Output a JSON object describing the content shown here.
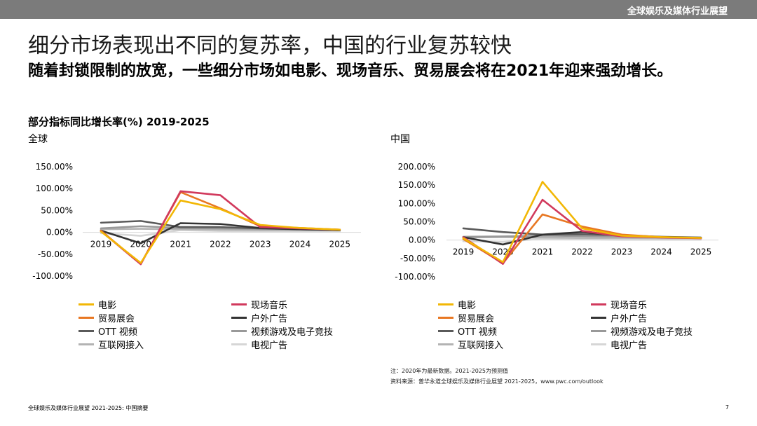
{
  "header": {
    "title": "全球娱乐及媒体行业展望"
  },
  "headline": "细分市场表现出不同的复苏率，中国的行业复苏较快",
  "subheadline": "随着封锁限制的放宽，一些细分市场如电影、现场音乐、贸易展会将在2021年迎来强劲增长。",
  "chart_heading": "部分指标同比增长率(%) 2019-2025",
  "notes": {
    "note": "注：2020年为最新数据。2021-2025为预测值",
    "source": "资料来源：普华永道全球娱乐及媒体行业展望 2021-2025，www.pwc.com/outlook"
  },
  "footer": {
    "left": "全球娱乐及媒体行业展望 2021-2025: 中国摘要",
    "page": "7"
  },
  "chart_data": [
    {
      "type": "line",
      "title": "全球",
      "categories": [
        "2019",
        "2020",
        "2021",
        "2022",
        "2023",
        "2024",
        "2025"
      ],
      "ylim": [
        -100,
        150
      ],
      "yticks": [
        150,
        100,
        50,
        0,
        -50,
        -100
      ],
      "ytick_labels": [
        "150.00%",
        "100.00%",
        "50.00%",
        "0.00%",
        "-50.00%",
        "-100.00%"
      ],
      "grid": false,
      "legend_position": "bottom",
      "series": [
        {
          "name": "电影",
          "color": "#f2b705",
          "values": [
            2,
            -70,
            73,
            53,
            17,
            10,
            6
          ]
        },
        {
          "name": "现场音乐",
          "color": "#d1395c",
          "values": [
            3,
            -73,
            94,
            85,
            12,
            9,
            6
          ]
        },
        {
          "name": "贸易展会",
          "color": "#e87722",
          "values": [
            4,
            -72,
            92,
            55,
            14,
            10,
            6
          ]
        },
        {
          "name": "户外广告",
          "color": "#333333",
          "values": [
            4,
            -25,
            21,
            19,
            10,
            7,
            5
          ]
        },
        {
          "name": "OTT 视频",
          "color": "#5a5a5a",
          "values": [
            22,
            26,
            12,
            12,
            9,
            7,
            5
          ]
        },
        {
          "name": "视频游戏及电子竞技",
          "color": "#999999",
          "values": [
            9,
            14,
            10,
            9,
            8,
            7,
            6
          ]
        },
        {
          "name": "互联网接入",
          "color": "#b3b3b3",
          "values": [
            7,
            8,
            7,
            6,
            5,
            5,
            5
          ]
        },
        {
          "name": "电视广告",
          "color": "#d6d6d6",
          "values": [
            -2,
            -8,
            5,
            3,
            2,
            2,
            2
          ]
        }
      ]
    },
    {
      "type": "line",
      "title": "中国",
      "categories": [
        "2019",
        "2020",
        "2021",
        "2022",
        "2023",
        "2024",
        "2025"
      ],
      "ylim": [
        -100,
        200
      ],
      "yticks": [
        200,
        150,
        100,
        50,
        0,
        -50,
        -100
      ],
      "ytick_labels": [
        "200.00%",
        "150.00%",
        "100.00%",
        "50.00%",
        "0.00%",
        "-50.00%",
        "-100.00%"
      ],
      "grid": false,
      "legend_position": "bottom",
      "series": [
        {
          "name": "电影",
          "color": "#f2b705",
          "values": [
            5,
            -60,
            159,
            32,
            12,
            8,
            6
          ]
        },
        {
          "name": "现场音乐",
          "color": "#d1395c",
          "values": [
            8,
            -65,
            110,
            25,
            10,
            7,
            5
          ]
        },
        {
          "name": "贸易展会",
          "color": "#e87722",
          "values": [
            3,
            -63,
            70,
            37,
            15,
            8,
            5
          ]
        },
        {
          "name": "户外广告",
          "color": "#333333",
          "values": [
            8,
            -12,
            15,
            22,
            12,
            8,
            6
          ]
        },
        {
          "name": "OTT 视频",
          "color": "#5a5a5a",
          "values": [
            32,
            22,
            15,
            16,
            13,
            9,
            7
          ]
        },
        {
          "name": "视频游戏及电子竞技",
          "color": "#999999",
          "values": [
            9,
            10,
            12,
            11,
            10,
            8,
            7
          ]
        },
        {
          "name": "互联网接入",
          "color": "#b3b3b3",
          "values": [
            7,
            8,
            7,
            6,
            6,
            5,
            5
          ]
        },
        {
          "name": "电视广告",
          "color": "#d6d6d6",
          "values": [
            -3,
            -5,
            4,
            2,
            1,
            1,
            1
          ]
        }
      ]
    }
  ]
}
